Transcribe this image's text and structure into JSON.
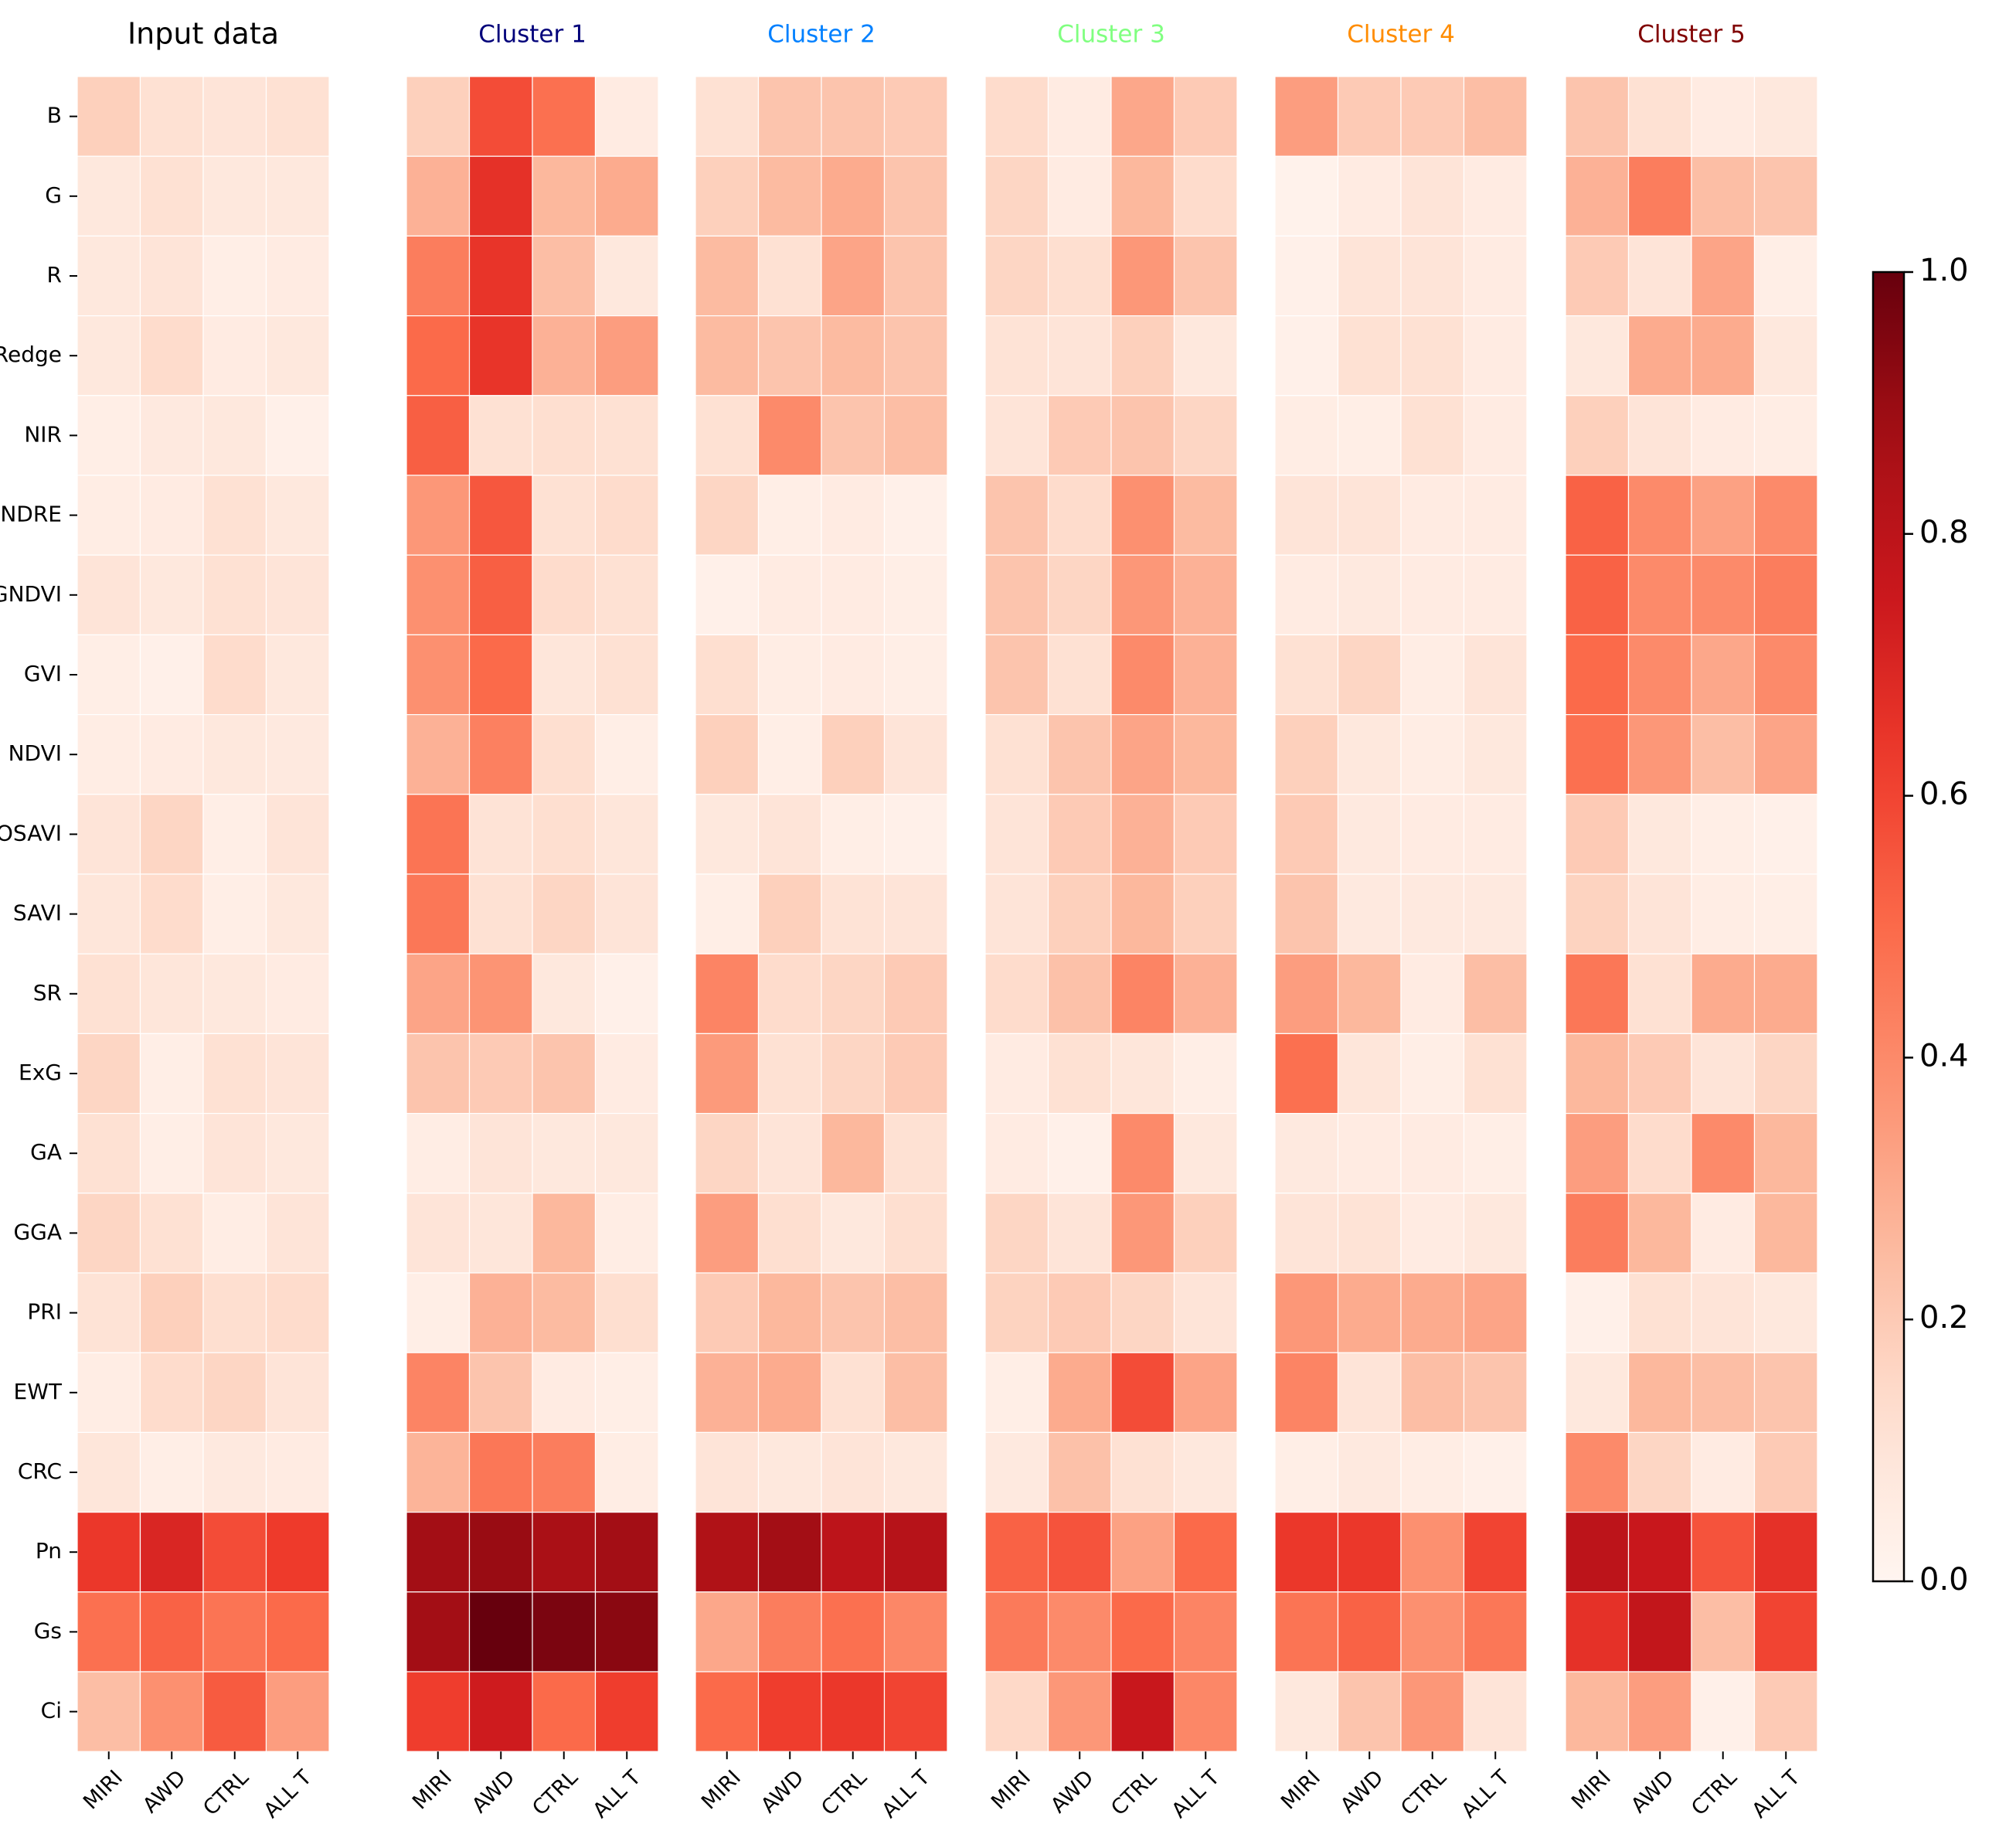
{
  "chart_data": {
    "type": "heatmap",
    "colormap": "Reds",
    "row_labels": [
      "B",
      "G",
      "R",
      "Redge",
      "NIR",
      "NDRE",
      "GNDVI",
      "GVI",
      "NDVI",
      "OSAVI",
      "SAVI",
      "SR",
      "ExG",
      "GA",
      "GGA",
      "PRI",
      "EWT",
      "CRC",
      "Pn",
      "Gs",
      "Ci"
    ],
    "column_labels": [
      "MIRI",
      "AWD",
      "CTRL",
      "ALL T"
    ],
    "colorbar": {
      "min": 0.0,
      "max": 1.0,
      "ticks": [
        "0.0",
        "0.2",
        "0.4",
        "0.6",
        "0.8",
        "1.0"
      ]
    },
    "panels": [
      {
        "title": "Input data",
        "title_color": "#000000",
        "values": [
          [
            0.18,
            0.12,
            0.1,
            0.12
          ],
          [
            0.08,
            0.12,
            0.08,
            0.08
          ],
          [
            0.08,
            0.1,
            0.04,
            0.06
          ],
          [
            0.08,
            0.14,
            0.06,
            0.08
          ],
          [
            0.04,
            0.07,
            0.08,
            0.03
          ],
          [
            0.05,
            0.06,
            0.12,
            0.08
          ],
          [
            0.1,
            0.08,
            0.12,
            0.1
          ],
          [
            0.04,
            0.03,
            0.14,
            0.08
          ],
          [
            0.05,
            0.06,
            0.08,
            0.07
          ],
          [
            0.1,
            0.16,
            0.04,
            0.1
          ],
          [
            0.09,
            0.14,
            0.04,
            0.08
          ],
          [
            0.12,
            0.09,
            0.08,
            0.06
          ],
          [
            0.16,
            0.04,
            0.12,
            0.1
          ],
          [
            0.12,
            0.04,
            0.1,
            0.08
          ],
          [
            0.16,
            0.12,
            0.05,
            0.1
          ],
          [
            0.11,
            0.18,
            0.13,
            0.14
          ],
          [
            0.05,
            0.14,
            0.16,
            0.1
          ],
          [
            0.09,
            0.04,
            0.07,
            0.06
          ],
          [
            0.64,
            0.7,
            0.58,
            0.63
          ],
          [
            0.48,
            0.52,
            0.47,
            0.5
          ],
          [
            0.24,
            0.38,
            0.54,
            0.34
          ]
        ]
      },
      {
        "title": "Cluster 1",
        "title_color": "#00007a",
        "values": [
          [
            0.18,
            0.58,
            0.48,
            0.06
          ],
          [
            0.28,
            0.66,
            0.26,
            0.3
          ],
          [
            0.44,
            0.65,
            0.24,
            0.08
          ],
          [
            0.5,
            0.65,
            0.28,
            0.34
          ],
          [
            0.53,
            0.12,
            0.13,
            0.12
          ],
          [
            0.36,
            0.55,
            0.12,
            0.14
          ],
          [
            0.38,
            0.53,
            0.14,
            0.12
          ],
          [
            0.38,
            0.5,
            0.09,
            0.12
          ],
          [
            0.28,
            0.43,
            0.13,
            0.04
          ],
          [
            0.47,
            0.11,
            0.13,
            0.09
          ],
          [
            0.46,
            0.12,
            0.16,
            0.1
          ],
          [
            0.32,
            0.37,
            0.08,
            0.03
          ],
          [
            0.22,
            0.2,
            0.22,
            0.06
          ],
          [
            0.05,
            0.1,
            0.08,
            0.08
          ],
          [
            0.1,
            0.09,
            0.26,
            0.05
          ],
          [
            0.04,
            0.28,
            0.25,
            0.13
          ],
          [
            0.42,
            0.22,
            0.06,
            0.04
          ],
          [
            0.27,
            0.46,
            0.44,
            0.05
          ],
          [
            0.88,
            0.9,
            0.86,
            0.88
          ],
          [
            0.88,
            1.0,
            0.96,
            0.93
          ],
          [
            0.62,
            0.74,
            0.5,
            0.62
          ]
        ]
      },
      {
        "title": "Cluster 2",
        "title_color": "#0080ff",
        "values": [
          [
            0.12,
            0.22,
            0.22,
            0.2
          ],
          [
            0.18,
            0.25,
            0.3,
            0.22
          ],
          [
            0.25,
            0.12,
            0.32,
            0.22
          ],
          [
            0.25,
            0.22,
            0.25,
            0.22
          ],
          [
            0.12,
            0.4,
            0.22,
            0.24
          ],
          [
            0.16,
            0.04,
            0.06,
            0.03
          ],
          [
            0.03,
            0.06,
            0.06,
            0.04
          ],
          [
            0.13,
            0.05,
            0.06,
            0.04
          ],
          [
            0.18,
            0.04,
            0.18,
            0.1
          ],
          [
            0.08,
            0.1,
            0.04,
            0.03
          ],
          [
            0.04,
            0.18,
            0.11,
            0.1
          ],
          [
            0.42,
            0.14,
            0.16,
            0.2
          ],
          [
            0.35,
            0.12,
            0.16,
            0.2
          ],
          [
            0.16,
            0.1,
            0.26,
            0.12
          ],
          [
            0.34,
            0.13,
            0.08,
            0.13
          ],
          [
            0.2,
            0.26,
            0.22,
            0.24
          ],
          [
            0.28,
            0.3,
            0.12,
            0.24
          ],
          [
            0.1,
            0.08,
            0.1,
            0.08
          ],
          [
            0.84,
            0.88,
            0.8,
            0.82
          ],
          [
            0.31,
            0.44,
            0.48,
            0.41
          ],
          [
            0.5,
            0.62,
            0.64,
            0.6
          ]
        ]
      },
      {
        "title": "Cluster 3",
        "title_color": "#80ff80",
        "values": [
          [
            0.14,
            0.06,
            0.31,
            0.2
          ],
          [
            0.16,
            0.06,
            0.26,
            0.14
          ],
          [
            0.16,
            0.13,
            0.36,
            0.22
          ],
          [
            0.11,
            0.1,
            0.18,
            0.08
          ],
          [
            0.1,
            0.2,
            0.22,
            0.16
          ],
          [
            0.22,
            0.14,
            0.38,
            0.25
          ],
          [
            0.22,
            0.16,
            0.36,
            0.28
          ],
          [
            0.22,
            0.12,
            0.4,
            0.28
          ],
          [
            0.12,
            0.22,
            0.32,
            0.26
          ],
          [
            0.1,
            0.2,
            0.28,
            0.2
          ],
          [
            0.1,
            0.18,
            0.26,
            0.18
          ],
          [
            0.14,
            0.23,
            0.42,
            0.28
          ],
          [
            0.06,
            0.12,
            0.09,
            0.04
          ],
          [
            0.06,
            0.03,
            0.4,
            0.08
          ],
          [
            0.16,
            0.1,
            0.36,
            0.18
          ],
          [
            0.17,
            0.2,
            0.16,
            0.1
          ],
          [
            0.04,
            0.3,
            0.58,
            0.32
          ],
          [
            0.07,
            0.23,
            0.12,
            0.08
          ],
          [
            0.52,
            0.56,
            0.33,
            0.5
          ],
          [
            0.45,
            0.4,
            0.5,
            0.42
          ],
          [
            0.15,
            0.36,
            0.76,
            0.41
          ]
        ]
      },
      {
        "title": "Cluster 4",
        "title_color": "#ff8c00",
        "values": [
          [
            0.34,
            0.2,
            0.2,
            0.24
          ],
          [
            0.02,
            0.06,
            0.1,
            0.06
          ],
          [
            0.03,
            0.1,
            0.1,
            0.06
          ],
          [
            0.03,
            0.12,
            0.12,
            0.06
          ],
          [
            0.05,
            0.04,
            0.12,
            0.06
          ],
          [
            0.1,
            0.1,
            0.06,
            0.06
          ],
          [
            0.06,
            0.07,
            0.06,
            0.06
          ],
          [
            0.12,
            0.16,
            0.05,
            0.1
          ],
          [
            0.18,
            0.08,
            0.05,
            0.08
          ],
          [
            0.2,
            0.07,
            0.06,
            0.06
          ],
          [
            0.22,
            0.07,
            0.07,
            0.07
          ],
          [
            0.34,
            0.26,
            0.06,
            0.24
          ],
          [
            0.48,
            0.09,
            0.04,
            0.12
          ],
          [
            0.07,
            0.06,
            0.06,
            0.04
          ],
          [
            0.1,
            0.11,
            0.06,
            0.08
          ],
          [
            0.36,
            0.3,
            0.3,
            0.32
          ],
          [
            0.42,
            0.1,
            0.24,
            0.22
          ],
          [
            0.04,
            0.07,
            0.05,
            0.03
          ],
          [
            0.64,
            0.64,
            0.38,
            0.6
          ],
          [
            0.47,
            0.52,
            0.38,
            0.46
          ],
          [
            0.08,
            0.22,
            0.36,
            0.1
          ]
        ]
      },
      {
        "title": "Cluster 5",
        "title_color": "#800000",
        "values": [
          [
            0.22,
            0.12,
            0.06,
            0.08
          ],
          [
            0.28,
            0.44,
            0.24,
            0.22
          ],
          [
            0.2,
            0.1,
            0.32,
            0.04
          ],
          [
            0.08,
            0.3,
            0.3,
            0.08
          ],
          [
            0.18,
            0.1,
            0.06,
            0.05
          ],
          [
            0.52,
            0.4,
            0.33,
            0.4
          ],
          [
            0.52,
            0.4,
            0.4,
            0.44
          ],
          [
            0.5,
            0.4,
            0.31,
            0.4
          ],
          [
            0.48,
            0.36,
            0.24,
            0.32
          ],
          [
            0.2,
            0.08,
            0.04,
            0.03
          ],
          [
            0.17,
            0.1,
            0.05,
            0.04
          ],
          [
            0.46,
            0.12,
            0.3,
            0.3
          ],
          [
            0.26,
            0.2,
            0.1,
            0.16
          ],
          [
            0.34,
            0.14,
            0.4,
            0.26
          ],
          [
            0.44,
            0.26,
            0.06,
            0.26
          ],
          [
            0.03,
            0.12,
            0.1,
            0.08
          ],
          [
            0.08,
            0.26,
            0.24,
            0.22
          ],
          [
            0.4,
            0.16,
            0.06,
            0.2
          ],
          [
            0.8,
            0.76,
            0.56,
            0.66
          ],
          [
            0.66,
            0.78,
            0.24,
            0.6
          ],
          [
            0.26,
            0.34,
            0.03,
            0.2
          ]
        ]
      }
    ]
  }
}
